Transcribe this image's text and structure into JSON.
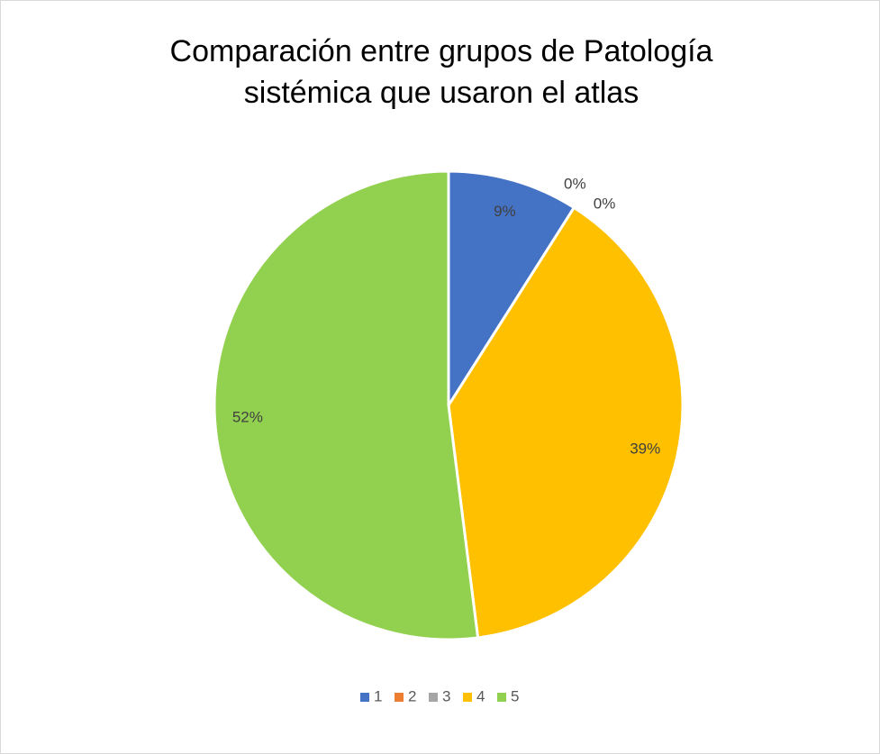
{
  "chart_data": {
    "type": "pie",
    "title": "Comparación entre grupos de Patología sistémica que usaron el atlas",
    "categories": [
      "1",
      "2",
      "3",
      "4",
      "5"
    ],
    "values": [
      9,
      0,
      0,
      39,
      52
    ],
    "value_labels": [
      "9%",
      "0%",
      "0%",
      "39%",
      "52%"
    ],
    "colors": [
      "#4472c4",
      "#ed7d31",
      "#a5a5a5",
      "#ffc000",
      "#92d050"
    ],
    "legend": "bottom"
  }
}
